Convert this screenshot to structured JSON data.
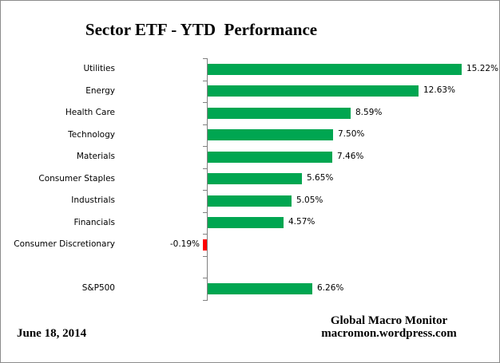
{
  "title": "Sector ETF - YTD  Performance",
  "footer": {
    "date": "June 18, 2014",
    "credit_line1": "Global Macro Monitor",
    "credit_line2": "macromon.wordpress.com"
  },
  "chart_data": {
    "type": "bar",
    "orientation": "horizontal",
    "title": "Sector ETF - YTD  Performance",
    "value_unit": "percent",
    "grid": false,
    "legend": false,
    "items": [
      {
        "label": "Utilities",
        "value": 15.22,
        "display": "15.22%"
      },
      {
        "label": "Energy",
        "value": 12.63,
        "display": "12.63%"
      },
      {
        "label": "Health Care",
        "value": 8.59,
        "display": "8.59%"
      },
      {
        "label": "Technology",
        "value": 7.5,
        "display": "7.50%"
      },
      {
        "label": "Materials",
        "value": 7.46,
        "display": "7.46%"
      },
      {
        "label": "Consumer Staples",
        "value": 5.65,
        "display": "5.65%"
      },
      {
        "label": "Industrials",
        "value": 5.05,
        "display": "5.05%"
      },
      {
        "label": "Financials",
        "value": 4.57,
        "display": "4.57%"
      },
      {
        "label": "Consumer Discretionary",
        "value": -0.19,
        "display": "-0.19%"
      },
      {
        "label": "",
        "value": null,
        "display": ""
      },
      {
        "label": "S&P500",
        "value": 6.26,
        "display": "6.26%"
      }
    ],
    "colors": {
      "positive_bar": "#00A651",
      "negative_bar": "#FF0000",
      "axis": "#808080"
    }
  }
}
